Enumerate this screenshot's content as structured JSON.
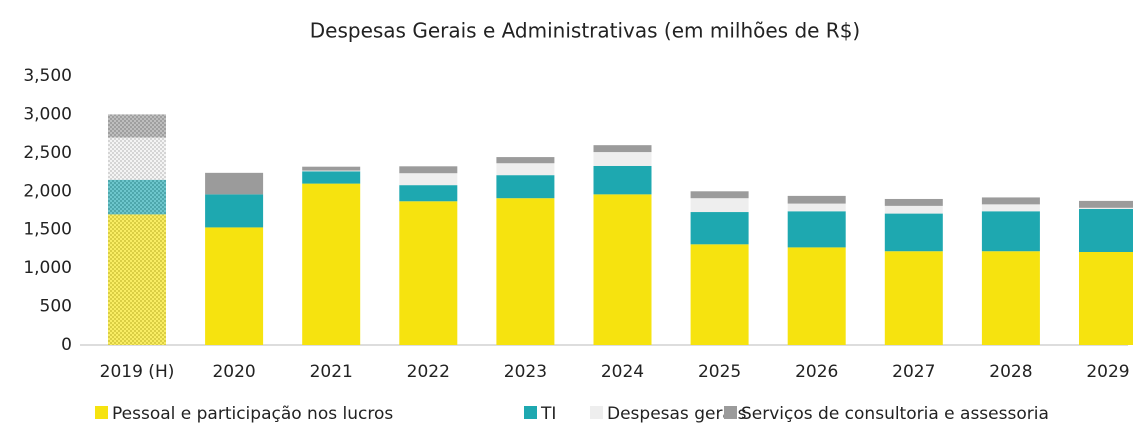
{
  "chart_data": {
    "type": "stacked_bar",
    "title": "Despesas Gerais e Administrativas (em milhões de R$)",
    "categories": [
      "2019 (H)",
      "2020",
      "2021",
      "2022",
      "2023",
      "2024",
      "2025",
      "2026",
      "2027",
      "2028",
      "2029"
    ],
    "series": [
      {
        "name": "Pessoal e participação nos lucros",
        "color": "#f6e30f",
        "values": [
          1700,
          1530,
          2100,
          1870,
          1910,
          1960,
          1310,
          1270,
          1220,
          1220,
          1210
        ]
      },
      {
        "name": "TI",
        "color": "#1ea8b0",
        "values": [
          450,
          430,
          160,
          210,
          300,
          370,
          420,
          470,
          490,
          520,
          560
        ]
      },
      {
        "name": "Despesas gerais",
        "color": "#eeeeee",
        "values": [
          550,
          0,
          10,
          155,
          155,
          180,
          180,
          100,
          100,
          90,
          15
        ]
      },
      {
        "name": "Serviços de consultoria e assessoria",
        "color": "#9b9b9b",
        "values": [
          300,
          280,
          50,
          90,
          80,
          90,
          90,
          100,
          90,
          90,
          90
        ]
      }
    ],
    "ylim": [
      0,
      3500
    ],
    "yticks": [
      0,
      500,
      {
        "value": 1000,
        "label": "1,000"
      },
      {
        "value": 1500,
        "label": "1,500"
      },
      {
        "value": 2000,
        "label": "2,000"
      },
      {
        "value": 2500,
        "label": "2,500"
      },
      {
        "value": 3000,
        "label": "3,000"
      },
      {
        "value": 3500,
        "label": "3,500"
      }
    ],
    "legend": "bottom"
  }
}
